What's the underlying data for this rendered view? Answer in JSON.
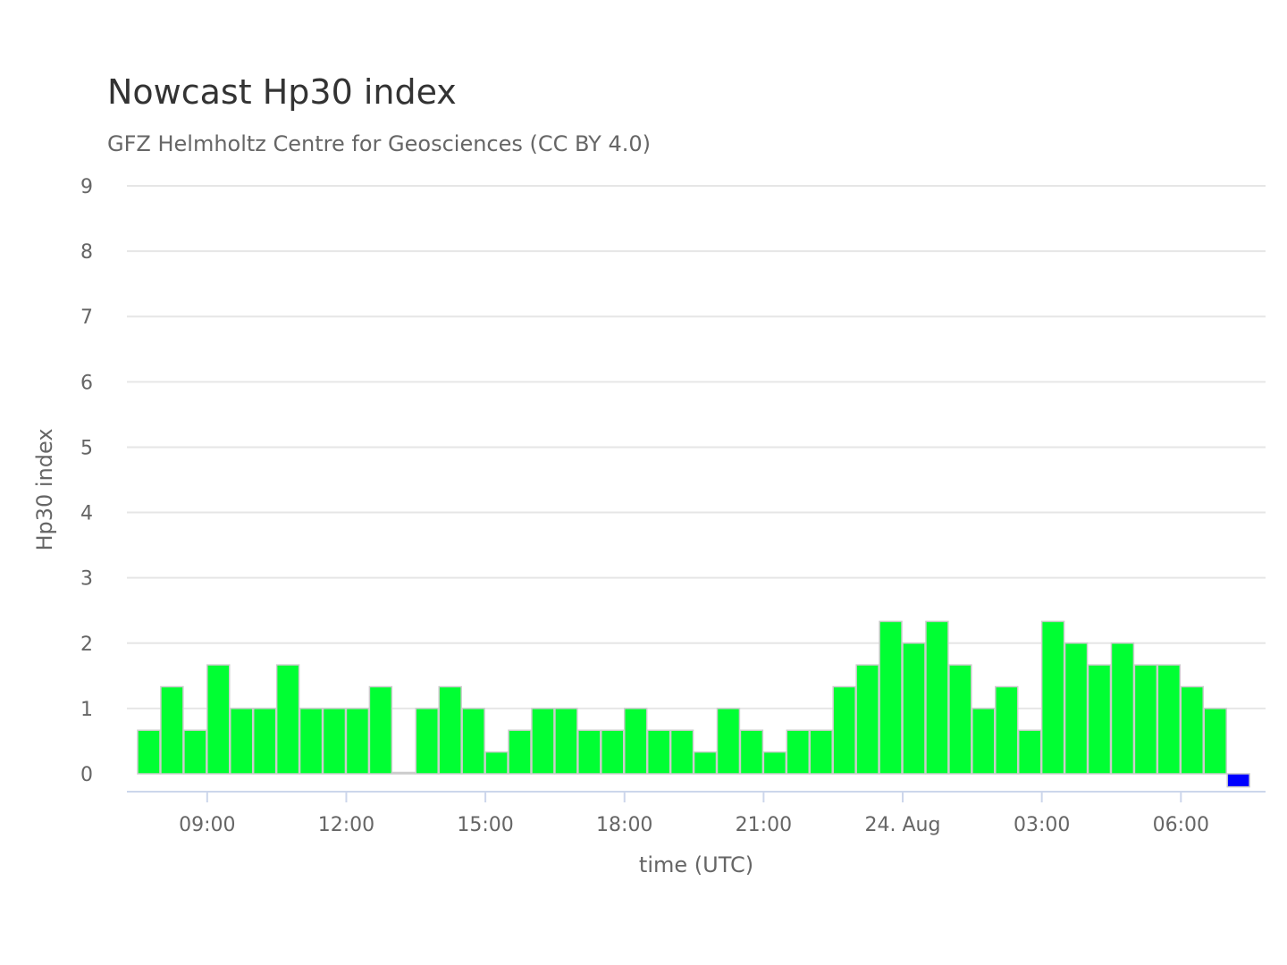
{
  "chart_data": {
    "type": "bar",
    "title": "Nowcast Hp30 index",
    "subtitle": "GFZ Helmholtz Centre for Geosciences (CC BY 4.0)",
    "xlabel": "time (UTC)",
    "ylabel": "Hp30 index",
    "ylim": [
      0,
      9
    ],
    "yticks": [
      "0",
      "1",
      "2",
      "3",
      "4",
      "5",
      "6",
      "7",
      "8",
      "9"
    ],
    "xticks": [
      "09:00",
      "12:00",
      "15:00",
      "18:00",
      "21:00",
      "24. Aug",
      "03:00",
      "06:00"
    ],
    "grid": true,
    "colors": {
      "bar": "#00ff33",
      "current_bar": "#0000ff",
      "bar_border": "#cccccc",
      "grid": "#e6e6e6",
      "axis": "#ccd6eb"
    },
    "time_start": "23 Aug 07:30",
    "interval_minutes": 30,
    "values": [
      0.667,
      1.333,
      0.667,
      1.667,
      1.0,
      1.0,
      1.667,
      1.0,
      1.0,
      1.0,
      1.333,
      0.0,
      1.0,
      1.333,
      1.0,
      0.333,
      0.667,
      1.0,
      1.0,
      0.667,
      0.667,
      1.0,
      0.667,
      0.667,
      0.333,
      1.0,
      0.667,
      0.333,
      0.667,
      0.667,
      1.333,
      1.667,
      2.333,
      2.0,
      2.333,
      1.667,
      1.0,
      1.333,
      0.667,
      2.333,
      2.0,
      1.667,
      2.0,
      1.667,
      1.667,
      1.333,
      1.0,
      -0.2
    ]
  }
}
